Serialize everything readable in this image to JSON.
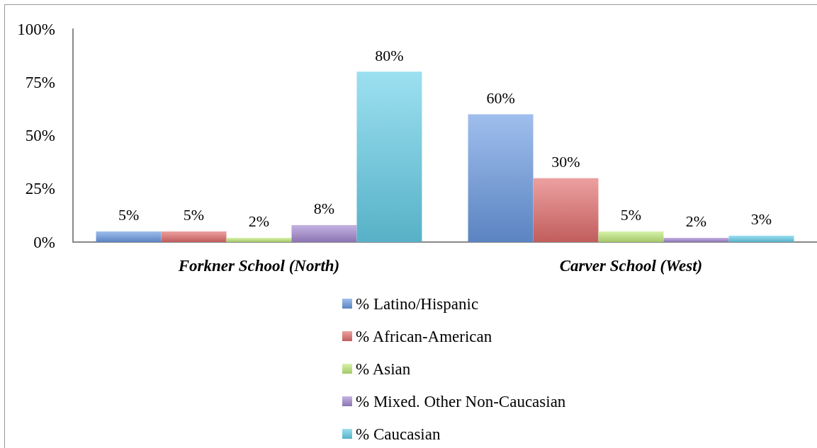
{
  "chart_data": {
    "type": "bar",
    "categories": [
      "Forkner School (North)",
      "Carver School (West)"
    ],
    "series": [
      {
        "name": "% Latino/Hispanic",
        "color": "#6b9be3",
        "values": [
          5,
          60
        ],
        "value_labels": [
          "5%",
          "60%"
        ]
      },
      {
        "name": "% African-American",
        "color": "#e36d6d",
        "values": [
          5,
          30
        ],
        "value_labels": [
          "5%",
          "30%"
        ]
      },
      {
        "name": "% Asian",
        "color": "#c2eb7c",
        "values": [
          2,
          5
        ],
        "value_labels": [
          "2%",
          "5%"
        ]
      },
      {
        "name": "% Mixed. Other Non-Caucasian",
        "color": "#a58ad2",
        "values": [
          8,
          2
        ],
        "value_labels": [
          "8%",
          "2%"
        ]
      },
      {
        "name": "% Caucasian",
        "color": "#66d0ea",
        "values": [
          80,
          3
        ],
        "value_labels": [
          "80%",
          "3%"
        ]
      }
    ],
    "ylim": [
      0,
      100
    ],
    "yticks": [
      {
        "value": 0,
        "label": "0%"
      },
      {
        "value": 25,
        "label": "25%"
      },
      {
        "value": 50,
        "label": "50%"
      },
      {
        "value": 75,
        "label": "75%"
      },
      {
        "value": 100,
        "label": "100%"
      }
    ],
    "legend": "bottom"
  }
}
